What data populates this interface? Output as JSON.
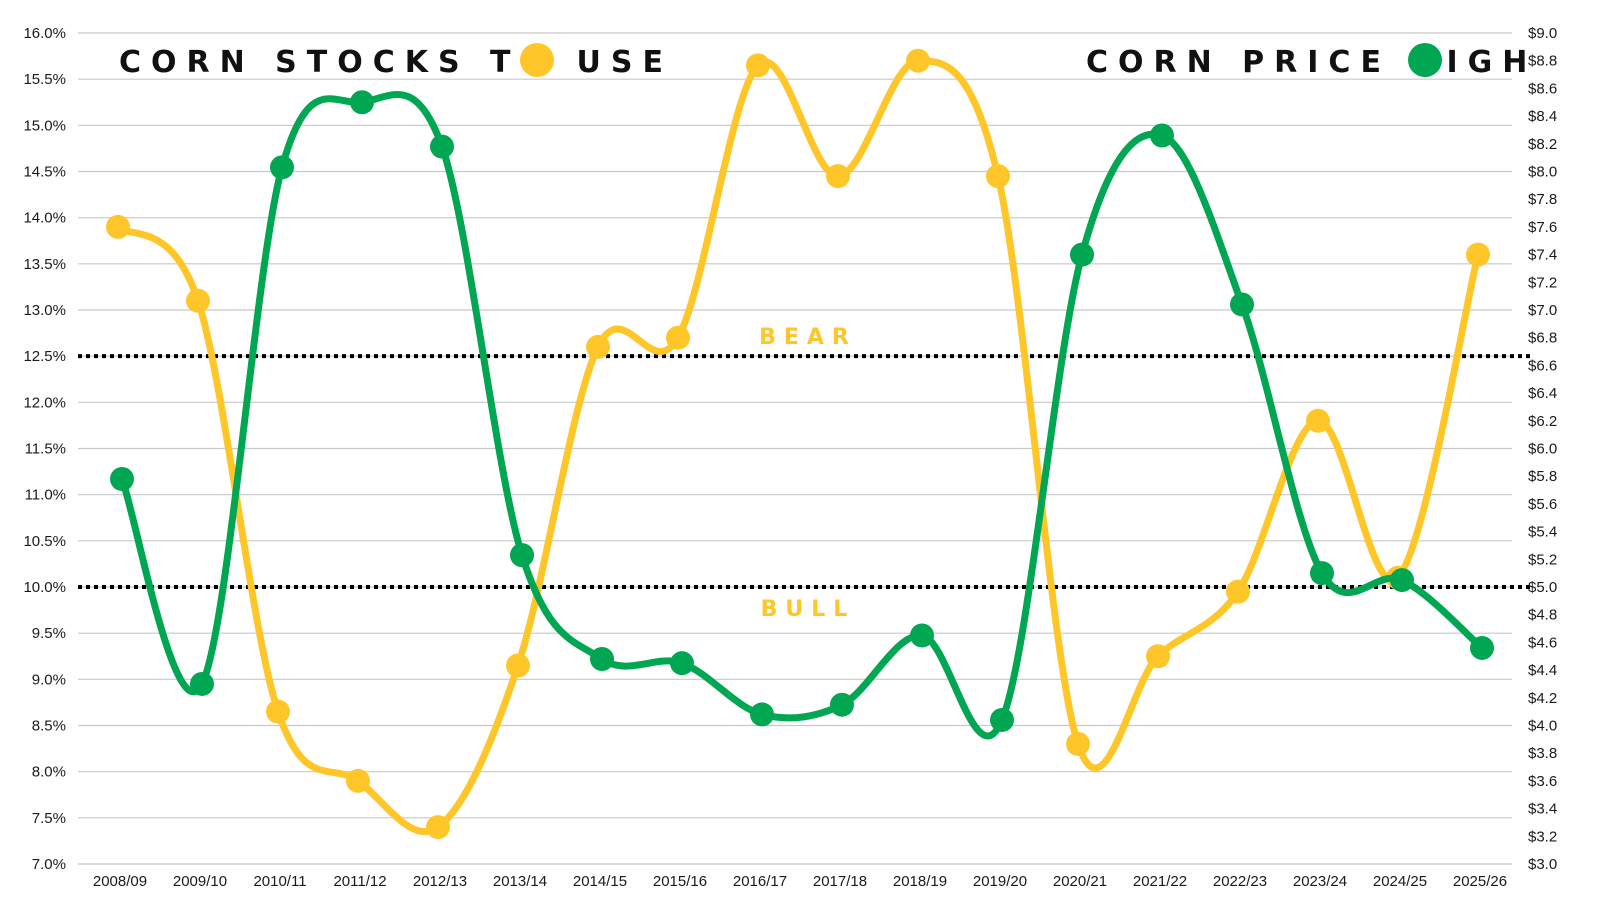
{
  "chart_data": {
    "type": "line",
    "categories": [
      "2008/09",
      "2009/10",
      "2010/11",
      "2011/12",
      "2012/13",
      "2013/14",
      "2014/15",
      "2015/16",
      "2016/17",
      "2017/18",
      "2018/19",
      "2019/20",
      "2020/21",
      "2021/22",
      "2022/23",
      "2023/24",
      "2024/25",
      "2025/26"
    ],
    "series": [
      {
        "name": "CORN STOCKS TO USE",
        "axis": "left",
        "color": "#FFC629",
        "values": [
          13.9,
          13.1,
          8.65,
          7.9,
          7.4,
          9.15,
          12.6,
          12.7,
          15.65,
          14.45,
          15.7,
          14.45,
          8.3,
          9.25,
          9.95,
          11.8,
          10.1,
          13.6
        ]
      },
      {
        "name": "CORN PRICE HIGH",
        "axis": "right",
        "color": "#00A651",
        "values": [
          5.78,
          4.3,
          8.03,
          8.5,
          8.18,
          5.23,
          4.48,
          4.45,
          4.08,
          4.15,
          4.65,
          4.04,
          7.4,
          8.26,
          7.04,
          5.1,
          5.05,
          4.56
        ]
      }
    ],
    "left_axis": {
      "ylim": [
        7.0,
        16.0
      ],
      "ticks": [
        "7.0%",
        "7.5%",
        "8.0%",
        "8.5%",
        "9.0%",
        "9.5%",
        "10.0%",
        "10.5%",
        "11.0%",
        "11.5%",
        "12.0%",
        "12.5%",
        "13.0%",
        "13.5%",
        "14.0%",
        "14.5%",
        "15.0%",
        "15.5%",
        "16.0%"
      ]
    },
    "right_axis": {
      "ylim": [
        3.0,
        9.0
      ],
      "ticks": [
        "$3.0",
        "$3.2",
        "$3.4",
        "$3.6",
        "$3.8",
        "$4.0",
        "$4.2",
        "$4.4",
        "$4.6",
        "$4.8",
        "$5.0",
        "$5.2",
        "$5.4",
        "$5.6",
        "$5.8",
        "$6.0",
        "$6.2",
        "$6.4",
        "$6.6",
        "$6.8",
        "$7.0",
        "$7.2",
        "$7.4",
        "$7.6",
        "$7.8",
        "$8.0",
        "$8.2",
        "$8.4",
        "$8.6",
        "$8.8",
        "$9.0"
      ]
    },
    "reference_lines": [
      {
        "value": 12.5,
        "label": "BEAR",
        "label_color": "#FFC629"
      },
      {
        "value": 10.0,
        "label": "BULL",
        "label_color": "#FFC629"
      }
    ],
    "legend": [
      {
        "label": "CORN STOCKS TO USE",
        "color": "#FFC629",
        "position": "top-left"
      },
      {
        "label": "CORN PRICE HIGH",
        "color": "#00A651",
        "position": "top-right"
      }
    ],
    "grid": true
  }
}
